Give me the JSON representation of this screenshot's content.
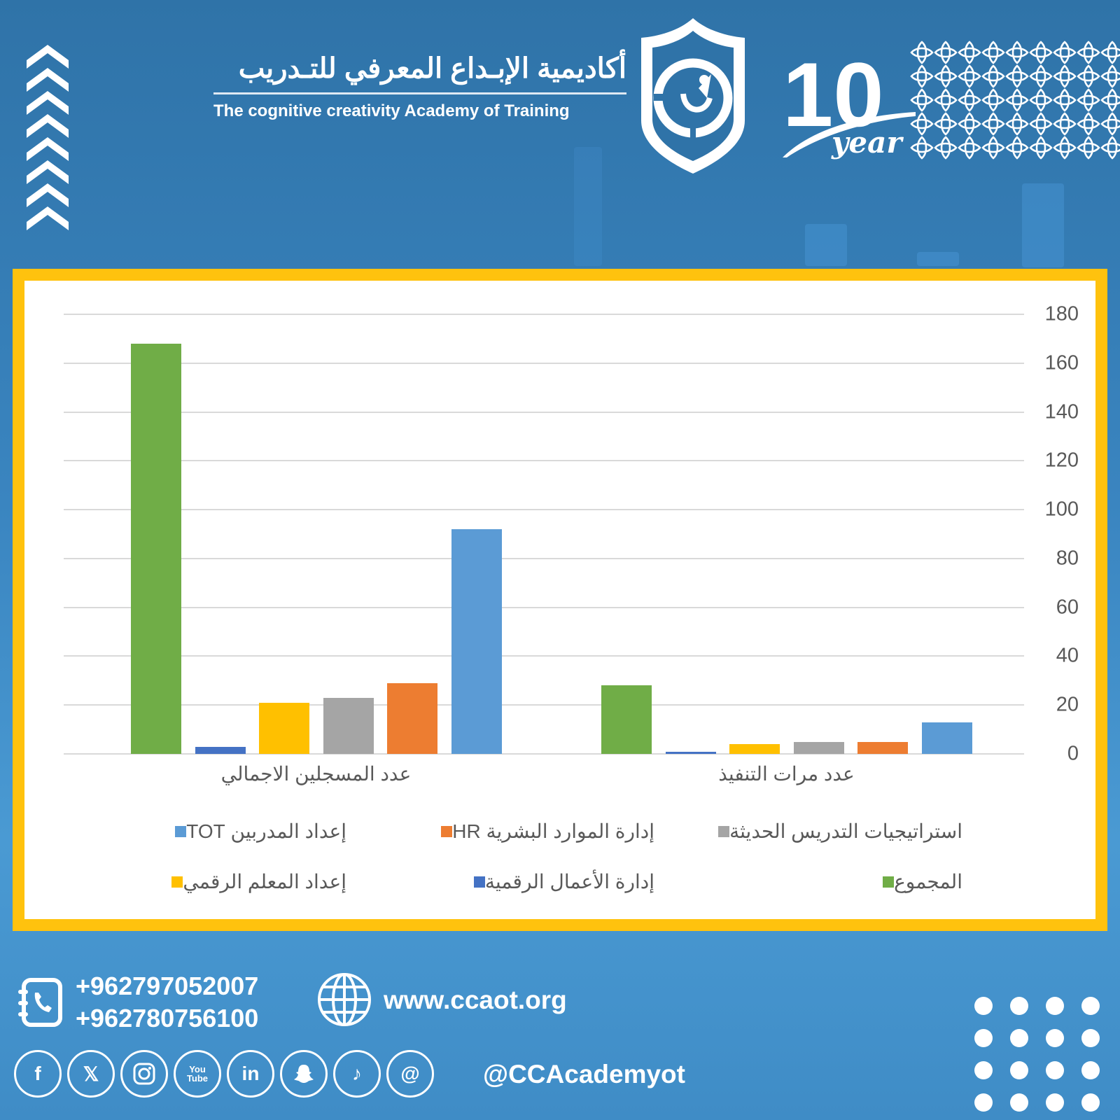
{
  "header": {
    "academy_name_ar": "أكاديمية الإبـداع المعرفي للتـدريب",
    "academy_name_en": "The cognitive creativity Academy of Training",
    "anniversary_number": "10",
    "anniversary_word": "year"
  },
  "chart_data": {
    "type": "bar",
    "title": "",
    "xlabel": "",
    "ylabel": "",
    "ylim": [
      0,
      180
    ],
    "yticks": [
      0,
      20,
      40,
      60,
      80,
      100,
      120,
      140,
      160,
      180
    ],
    "grid": true,
    "legend_position": "bottom",
    "categories": [
      "عدد المسجلين الاجمالي",
      "عدد مرات التنفيذ"
    ],
    "series": [
      {
        "name": "المجموع",
        "color": "#70ad47",
        "values": [
          168,
          28
        ]
      },
      {
        "name": "إدارة الأعمال الرقمية",
        "color": "#4472c4",
        "values": [
          3,
          1
        ]
      },
      {
        "name": "إعداد المعلم الرقمي",
        "color": "#ffc000",
        "values": [
          21,
          4
        ]
      },
      {
        "name": "استراتيجيات التدريس الحديثة",
        "color": "#a5a5a5",
        "values": [
          23,
          5
        ]
      },
      {
        "name": "إدارة الموارد البشرية HR",
        "color": "#ed7d31",
        "values": [
          29,
          5
        ]
      },
      {
        "name": "إعداد المدربين TOT",
        "color": "#5b9bd5",
        "values": [
          92,
          13
        ]
      }
    ],
    "legend_order": [
      [
        "إعداد المدربين TOT",
        "إدارة الموارد البشرية HR",
        "استراتيجيات التدريس الحديثة"
      ],
      [
        "إعداد المعلم الرقمي",
        "إدارة الأعمال الرقمية",
        "المجموع"
      ]
    ]
  },
  "contact": {
    "phones": [
      "+962797052007",
      "+962780756100"
    ],
    "website": "www.ccaot.org",
    "handle": "@CCAcademyot",
    "socials": [
      "facebook",
      "x",
      "instagram",
      "youtube",
      "linkedin",
      "snapchat",
      "tiktok",
      "threads"
    ]
  },
  "colors": {
    "frame": "#ffc20e",
    "background": "#3a85c0"
  }
}
